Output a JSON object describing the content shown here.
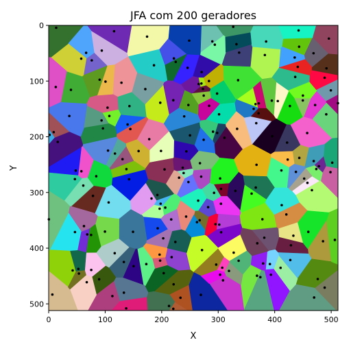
{
  "chart_data": {
    "type": "heatmap",
    "title": "JFA com 200 geradores",
    "xlabel": "X",
    "ylabel": "Y",
    "xlim": [
      0,
      512
    ],
    "ylim": [
      512,
      0
    ],
    "y_axis_inverted": true,
    "xticks": [
      0,
      100,
      200,
      300,
      400,
      500
    ],
    "yticks": [
      0,
      100,
      200,
      300,
      400,
      500
    ],
    "grid": false,
    "legend": "none",
    "generator_count": 200,
    "generator_color": "#000000",
    "seed": 2024
  }
}
